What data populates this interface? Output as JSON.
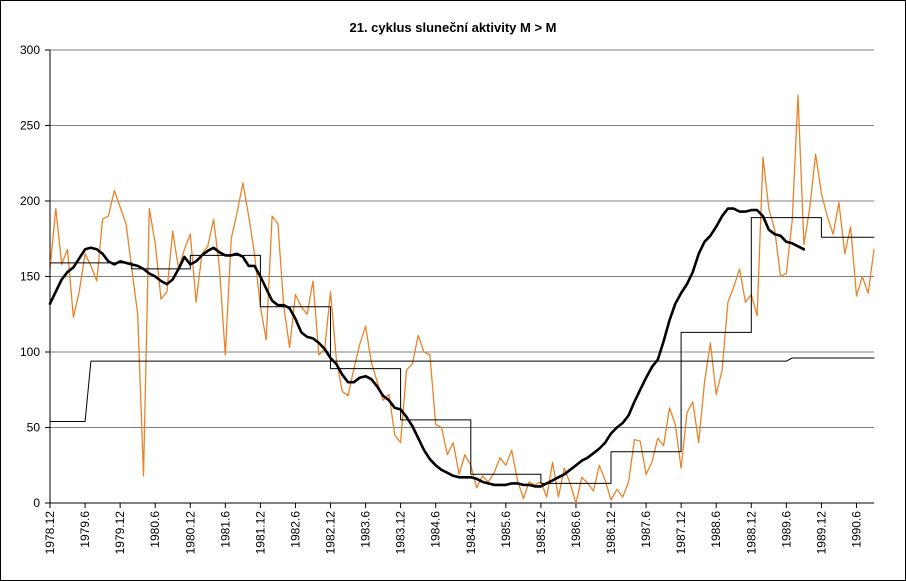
{
  "chart_data": {
    "type": "line",
    "title": "21. cyklus sluneční aktivity  M > M",
    "xlabel": "",
    "ylabel": "",
    "ylim": [
      0,
      300
    ],
    "yticks": [
      0,
      50,
      100,
      150,
      200,
      250,
      300
    ],
    "x_tick_labels": [
      "1978.12",
      "1979.6",
      "1979.12",
      "1980.6",
      "1980.12",
      "1981.6",
      "1981.12",
      "1982.6",
      "1982.12",
      "1983.6",
      "1983.12",
      "1984.6",
      "1984.12",
      "1985.6",
      "1985.12",
      "1986.6",
      "1986.12",
      "1987.6",
      "1987.12",
      "1988.6",
      "1988.12",
      "1989.6",
      "1989.12",
      "1990.6"
    ],
    "grid": "horizontal",
    "colors": {
      "monthly": "#E8832A",
      "smoothed": "#000000",
      "step": "#000000",
      "long_mean": "#000000"
    },
    "series": [
      {
        "key": "monthly",
        "values": [
          155,
          195,
          158,
          168,
          123,
          140,
          165,
          157,
          147,
          188,
          190,
          207,
          196,
          185,
          155,
          125,
          18,
          195,
          172,
          135,
          140,
          180,
          155,
          168,
          178,
          133,
          165,
          170,
          188,
          155,
          98,
          175,
          192,
          212,
          190,
          165,
          130,
          108,
          190,
          185,
          130,
          103,
          138,
          130,
          125,
          147,
          98,
          102,
          140,
          95,
          74,
          71,
          89,
          105,
          117,
          93,
          80,
          68,
          72,
          45,
          40,
          88,
          92,
          111,
          100,
          98,
          52,
          50,
          32,
          40,
          19,
          32,
          25,
          10,
          18,
          14,
          20,
          30,
          25,
          35,
          15,
          3,
          14,
          12,
          14,
          4,
          27,
          4,
          23,
          13,
          0,
          17,
          13,
          8,
          25,
          15,
          2,
          9,
          4,
          14,
          42,
          41,
          19,
          27,
          43,
          38,
          63,
          52,
          23,
          60,
          67,
          40,
          80,
          106,
          72,
          88,
          133,
          143,
          155,
          133,
          138,
          124,
          229,
          195,
          181,
          150,
          152,
          187,
          270,
          171,
          195,
          231,
          205,
          190,
          178,
          199,
          165,
          183,
          137,
          150,
          139,
          168
        ]
      },
      {
        "key": "smoothed",
        "values": [
          132,
          140,
          148,
          153,
          156,
          162,
          168,
          169,
          168,
          165,
          160,
          158,
          160,
          159,
          158,
          157,
          155,
          152,
          150,
          147,
          145,
          148,
          155,
          163,
          158,
          160,
          164,
          167,
          169,
          166,
          164,
          164,
          165,
          163,
          157,
          157,
          150,
          142,
          134,
          131,
          131,
          129,
          122,
          113,
          110,
          109,
          106,
          102,
          96,
          92,
          85,
          80,
          80,
          83,
          84,
          82,
          77,
          71,
          68,
          63,
          62,
          57,
          51,
          43,
          35,
          29,
          25,
          22,
          20,
          18,
          17,
          17,
          17,
          16,
          14,
          13,
          12,
          12,
          12,
          13,
          13,
          12,
          12,
          11,
          11,
          13,
          15,
          17,
          19,
          22,
          25,
          28,
          30,
          33,
          36,
          40,
          46,
          50,
          53,
          58,
          67,
          75,
          83,
          90,
          95,
          107,
          121,
          132,
          139,
          145,
          153,
          165,
          173,
          177,
          183,
          190,
          195,
          195,
          193,
          193,
          194,
          194,
          190,
          181,
          178,
          177,
          173,
          172,
          170,
          168
        ]
      },
      {
        "key": "step",
        "points": [
          [
            0,
            100
          ],
          [
            0,
            159
          ],
          [
            14,
            159
          ],
          [
            14,
            155
          ],
          [
            24,
            155
          ],
          [
            24,
            164
          ],
          [
            36,
            164
          ],
          [
            36,
            130
          ],
          [
            48,
            130
          ],
          [
            48,
            89
          ],
          [
            60,
            89
          ],
          [
            60,
            55
          ],
          [
            72,
            55
          ],
          [
            72,
            19
          ],
          [
            84,
            19
          ],
          [
            84,
            13
          ],
          [
            96,
            13
          ],
          [
            96,
            34
          ],
          [
            108,
            34
          ],
          [
            108,
            113
          ],
          [
            120,
            113
          ],
          [
            120,
            189
          ],
          [
            132,
            189
          ],
          [
            132,
            176
          ],
          [
            141,
            176
          ]
        ]
      },
      {
        "key": "long_mean",
        "points": [
          [
            0,
            54
          ],
          [
            6,
            54
          ],
          [
            7,
            94
          ],
          [
            126,
            94
          ],
          [
            127,
            96
          ],
          [
            141,
            96
          ]
        ]
      }
    ]
  }
}
